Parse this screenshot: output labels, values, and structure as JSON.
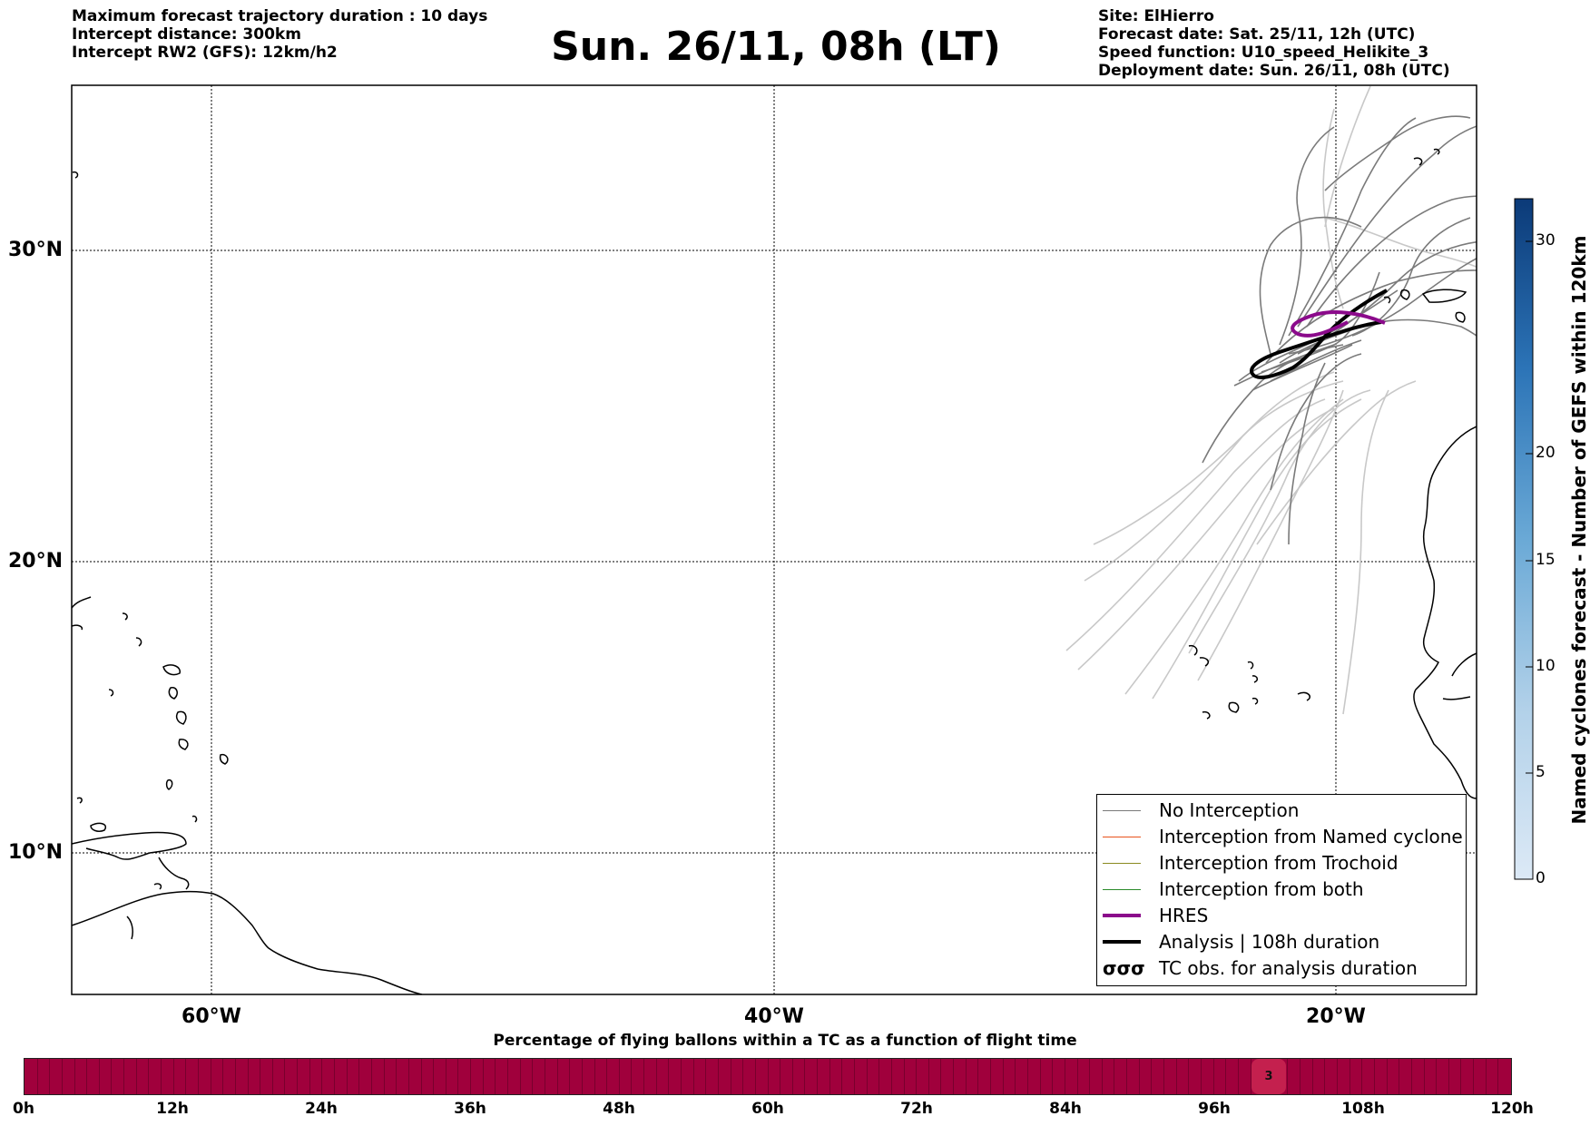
{
  "header": {
    "left_lines": [
      "Maximum forecast trajectory duration : 10 days",
      "Intercept distance: 300km",
      "Intercept RW2 (GFS):  12km/h2"
    ],
    "title": "Sun. 26/11, 08h (LT)",
    "right_lines": [
      "Site: ElHierro",
      "Forecast date: Sat. 25/11, 12h (UTC)",
      "Speed function: U10_speed_Helikite_3",
      "Deployment date: Sun. 26/11, 08h (UTC)"
    ]
  },
  "map": {
    "lat_labels": [
      "30°N",
      "20°N",
      "10°N"
    ],
    "lon_labels": [
      "60°W",
      "40°W",
      "20°W"
    ],
    "gridlines": true,
    "colors": {
      "no_interception": "#7a7a7a",
      "ensemble_light": "#c8c8c8",
      "hres": "#8b0a8b",
      "analysis": "#000000",
      "coastline": "#000000"
    }
  },
  "legend": {
    "items": [
      {
        "label": "No Interception",
        "color": "#7a7a7a",
        "style": "thin"
      },
      {
        "label": "Interception from Named cyclone",
        "color": "#e8531b",
        "style": "thin"
      },
      {
        "label": "Interception from Trochoid",
        "color": "#8a8a20",
        "style": "thin"
      },
      {
        "label": "Interception from both",
        "color": "#2a8a2a",
        "style": "thin"
      },
      {
        "label": "HRES",
        "color": "#8b0a8b",
        "style": "thick"
      },
      {
        "label": "Analysis | 108h duration",
        "color": "#000000",
        "style": "thick"
      },
      {
        "label": "TC obs. for analysis duration",
        "color": "#000000",
        "style": "symbol",
        "symbol": "σσσ"
      }
    ]
  },
  "colorbar": {
    "label": "Named cyclones forecast - Number of GEFS within 120km",
    "ticks": [
      "0",
      "5",
      "10",
      "15",
      "20",
      "30"
    ],
    "min": 0,
    "max": 32,
    "color_low": "#dce9f6",
    "color_high": "#0b3a78"
  },
  "timebar": {
    "title": "Percentage of flying ballons within a TC as a function of flight time",
    "ticks": [
      "0h",
      "12h",
      "24h",
      "36h",
      "48h",
      "60h",
      "72h",
      "84h",
      "96h",
      "108h",
      "120h"
    ],
    "marker_label": "3",
    "bar_color": "#a0003c"
  }
}
